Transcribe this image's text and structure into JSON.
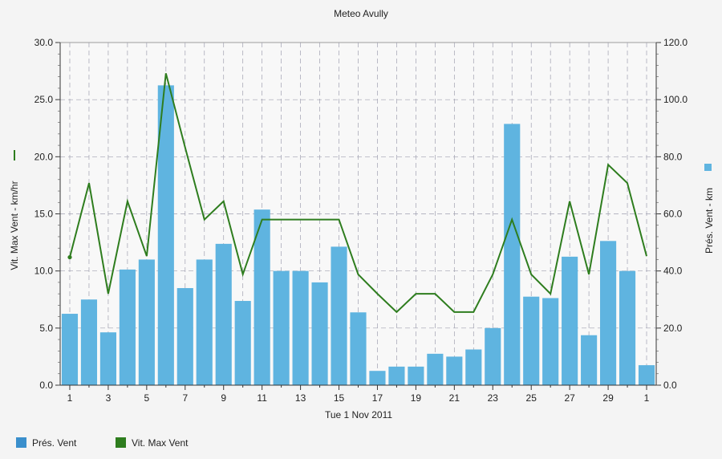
{
  "chart_data": {
    "type": "bar",
    "title": "Meteo  Avully",
    "xlabel": "Tue 1 Nov 2011",
    "ylabel_left": "Vit. Max Vent - km/hr",
    "ylabel_right": "Prés. Vent - km",
    "x_tick_labels": [
      "1",
      "3",
      "5",
      "7",
      "9",
      "11",
      "13",
      "15",
      "17",
      "19",
      "21",
      "23",
      "25",
      "27",
      "29",
      "1"
    ],
    "categories": [
      "1",
      "2",
      "3",
      "4",
      "5",
      "6",
      "7",
      "8",
      "9",
      "10",
      "11",
      "12",
      "13",
      "14",
      "15",
      "16",
      "17",
      "18",
      "19",
      "20",
      "21",
      "22",
      "23",
      "24",
      "25",
      "26",
      "27",
      "28",
      "29",
      "30",
      "1"
    ],
    "ylim_left": [
      0,
      30
    ],
    "ylim_right": [
      0,
      120
    ],
    "yticks_left": [
      "0.0",
      "5.0",
      "10.0",
      "15.0",
      "20.0",
      "25.0",
      "30.0"
    ],
    "yticks_right": [
      "0.0",
      "20.0",
      "40.0",
      "60.0",
      "80.0",
      "100.0",
      "120.0"
    ],
    "grid": true,
    "legend_position": "bottom-left",
    "series": [
      {
        "name": "Prés. Vent",
        "kind": "bar",
        "axis": "right",
        "color": "#5fb4e0",
        "values": [
          25,
          30,
          18.5,
          40.5,
          44,
          105,
          34,
          44,
          49.5,
          29.5,
          61.5,
          40,
          40,
          36,
          48.5,
          25.5,
          5,
          6.5,
          6.5,
          11,
          10,
          12.5,
          20,
          91.5,
          31,
          30.5,
          45,
          17.5,
          50.5,
          40,
          7
        ]
      },
      {
        "name": "Vit. Max Vent",
        "kind": "line",
        "axis": "left",
        "color": "#2e7d1e",
        "values": [
          11.2,
          17.7,
          8,
          16.1,
          11.3,
          27.3,
          20.8,
          14.5,
          16.1,
          9.7,
          14.5,
          14.5,
          14.5,
          14.5,
          14.5,
          9.7,
          8,
          6.4,
          8,
          8,
          6.4,
          6.4,
          9.7,
          14.5,
          9.7,
          8,
          16.1,
          9.7,
          19.3,
          17.7,
          11.3
        ]
      }
    ]
  },
  "legend": {
    "items": [
      {
        "label": "Prés. Vent",
        "color": "#3a8fcc"
      },
      {
        "label": "Vit. Max Vent",
        "color": "#2e7d1e"
      }
    ]
  }
}
